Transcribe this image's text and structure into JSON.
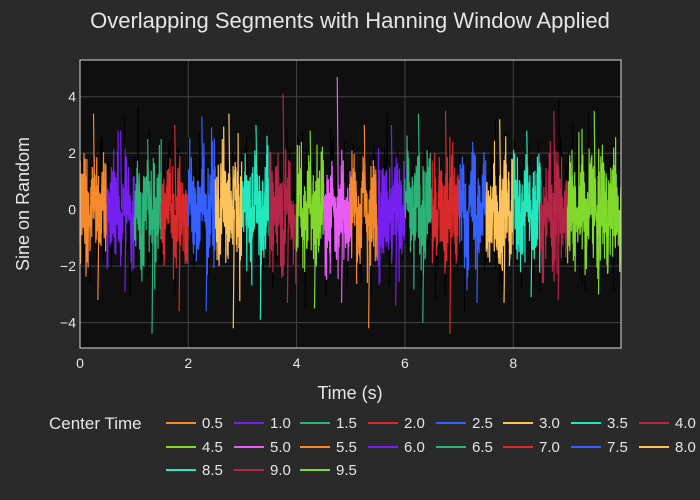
{
  "chart_data": {
    "type": "line",
    "title": "Overlapping Segments with Hanning Window Applied",
    "xlabel": "Time (s)",
    "ylabel": "Sine on Random",
    "xlim": [
      0,
      9.99
    ],
    "ylim": [
      -4.9,
      5.3
    ],
    "x_ticks": [
      0,
      2,
      4,
      6,
      8
    ],
    "y_ticks": [
      -4,
      -2,
      0,
      2,
      4
    ],
    "grid": true,
    "legend_title": "Center Time",
    "legend_placement": "bottom",
    "series": [
      {
        "name": "0.5",
        "color": "#f58a2a",
        "x_range": [
          0.0,
          0.5
        ],
        "y_range": [
          -3.2,
          3.4
        ]
      },
      {
        "name": "1.0",
        "color": "#7520f0",
        "x_range": [
          0.5,
          1.0
        ],
        "y_range": [
          -2.9,
          2.8
        ]
      },
      {
        "name": "1.5",
        "color": "#2db37a",
        "x_range": [
          1.0,
          1.5
        ],
        "y_range": [
          -4.4,
          2.5
        ]
      },
      {
        "name": "2.0",
        "color": "#d92b2b",
        "x_range": [
          1.5,
          2.0
        ],
        "y_range": [
          -3.6,
          3.0
        ]
      },
      {
        "name": "2.5",
        "color": "#3560ff",
        "x_range": [
          2.0,
          2.5
        ],
        "y_range": [
          -3.6,
          3.3
        ]
      },
      {
        "name": "3.0",
        "color": "#fcc45a",
        "x_range": [
          2.5,
          3.0
        ],
        "y_range": [
          -4.2,
          3.4
        ]
      },
      {
        "name": "3.5",
        "color": "#24e8bd",
        "x_range": [
          3.0,
          3.5
        ],
        "y_range": [
          -3.9,
          3.0
        ]
      },
      {
        "name": "4.0",
        "color": "#b32647",
        "x_range": [
          3.5,
          4.0
        ],
        "y_range": [
          -3.3,
          4.1
        ]
      },
      {
        "name": "4.5",
        "color": "#80d92b",
        "x_range": [
          4.0,
          4.5
        ],
        "y_range": [
          -3.5,
          2.8
        ]
      },
      {
        "name": "5.0",
        "color": "#e65cf5",
        "x_range": [
          4.5,
          5.0
        ],
        "y_range": [
          -3.3,
          4.7
        ]
      },
      {
        "name": "5.5",
        "color": "#f58a2a",
        "x_range": [
          5.0,
          5.5
        ],
        "y_range": [
          -4.2,
          3.0
        ]
      },
      {
        "name": "6.0",
        "color": "#7520f0",
        "x_range": [
          5.5,
          6.0
        ],
        "y_range": [
          -3.4,
          3.0
        ]
      },
      {
        "name": "6.5",
        "color": "#2db37a",
        "x_range": [
          6.0,
          6.5
        ],
        "y_range": [
          -4.0,
          3.4
        ]
      },
      {
        "name": "7.0",
        "color": "#d92b2b",
        "x_range": [
          6.5,
          7.0
        ],
        "y_range": [
          -4.4,
          3.5
        ]
      },
      {
        "name": "7.5",
        "color": "#3560ff",
        "x_range": [
          7.0,
          7.5
        ],
        "y_range": [
          -3.3,
          2.4
        ]
      },
      {
        "name": "8.0",
        "color": "#fcc45a",
        "x_range": [
          7.5,
          8.0
        ],
        "y_range": [
          -3.3,
          3.2
        ]
      },
      {
        "name": "8.5",
        "color": "#24e8bd",
        "x_range": [
          8.0,
          8.5
        ],
        "y_range": [
          -3.1,
          2.8
        ]
      },
      {
        "name": "9.0",
        "color": "#b32647",
        "x_range": [
          8.5,
          9.0
        ],
        "y_range": [
          -3.2,
          3.5
        ]
      },
      {
        "name": "9.5",
        "color": "#80d92b",
        "x_range": [
          9.0,
          9.99
        ],
        "y_range": [
          -3.0,
          3.5
        ]
      }
    ]
  }
}
